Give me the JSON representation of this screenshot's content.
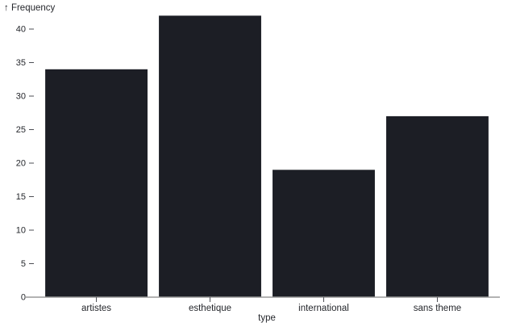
{
  "chart_data": {
    "type": "bar",
    "title": "",
    "categories": [
      "artistes",
      "esthetique",
      "international",
      "sans theme"
    ],
    "values": [
      34,
      42,
      19,
      27
    ],
    "xlabel": "type",
    "ylabel": "↑ Frequency",
    "y_ticks": [
      0,
      5,
      10,
      15,
      20,
      25,
      30,
      35,
      40
    ],
    "ylim": [
      0,
      42
    ],
    "grid": false,
    "legend": null,
    "colors": {
      "bar": "#1c1e25",
      "text": "#25272c",
      "tick": "#4d4f55",
      "baseline": "#9a9a9a",
      "background": "#ffffff"
    }
  }
}
